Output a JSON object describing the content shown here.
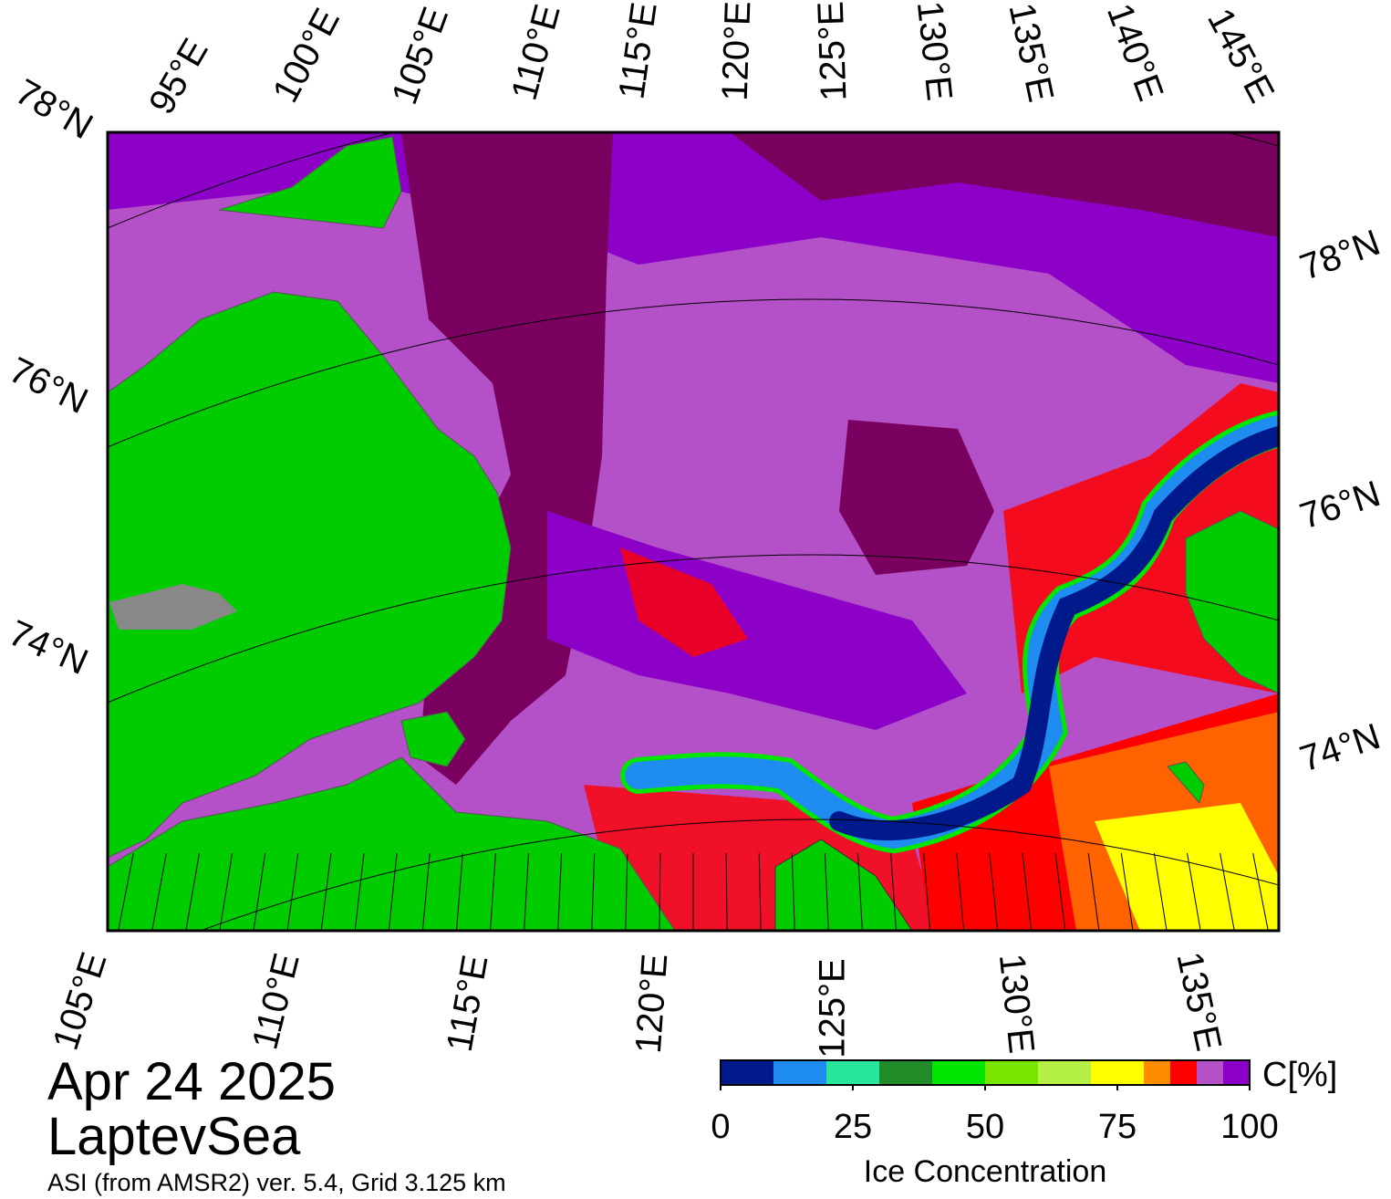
{
  "map": {
    "top_lon_labels": [
      "95°E",
      "100°E",
      "105°E",
      "110°E",
      "115°E",
      "120°E",
      "125°E",
      "130°E",
      "135°E",
      "140°E",
      "145°E"
    ],
    "left_lat_labels": [
      "78°N",
      "76°N",
      "74°N"
    ],
    "right_lat_labels": [
      "78°N",
      "76°N",
      "74°N"
    ],
    "bottom_lon_labels": [
      "105°E",
      "110°E",
      "115°E",
      "120°E",
      "125°E",
      "130°E",
      "135°E"
    ]
  },
  "date": "Apr 24 2025",
  "region": "LaptevSea",
  "source": "ASI (from AMSR2) ver. 5.4,  Grid 3.125 km",
  "colorbar": {
    "label": "Ice Concentration",
    "unit": "C[%]",
    "range": [
      0,
      100
    ],
    "ticks": [
      0,
      25,
      50,
      75,
      100
    ],
    "bins": [
      0,
      10,
      20,
      30,
      40,
      50,
      60,
      70,
      80,
      85,
      90,
      95,
      100
    ],
    "colors": [
      "#001a8c",
      "#1e8cf0",
      "#28e69b",
      "#1f8c28",
      "#00e600",
      "#78e600",
      "#b4f046",
      "#ffff00",
      "#ff8c00",
      "#ff0000",
      "#b450c8",
      "#8c00c8"
    ]
  }
}
